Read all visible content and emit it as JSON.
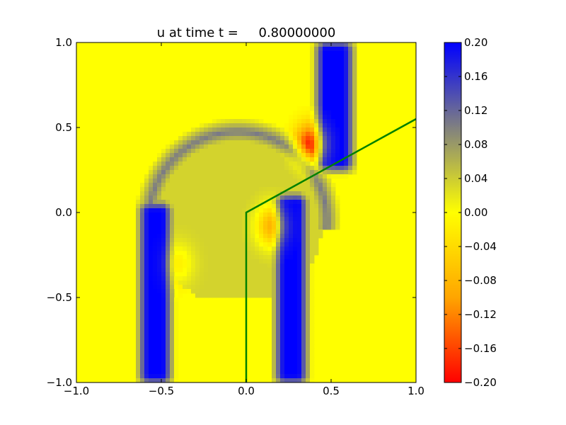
{
  "chart_data": {
    "type": "heatmap",
    "title": "u at time t =     0.80000000",
    "xlabel": "",
    "ylabel": "",
    "xlim": [
      -1.0,
      1.0
    ],
    "ylim": [
      -1.0,
      1.0
    ],
    "x_ticks": [
      "−1.0",
      "−0.5",
      "0.0",
      "0.5",
      "1.0"
    ],
    "y_ticks": [
      "−1.0",
      "−0.5",
      "0.0",
      "0.5",
      "1.0"
    ],
    "colorbar": {
      "range": [
        -0.2,
        0.2
      ],
      "ticks": [
        "0.20",
        "0.16",
        "0.12",
        "0.08",
        "0.04",
        "0.00",
        "−0.04",
        "−0.08",
        "−0.12",
        "−0.16",
        "−0.20"
      ],
      "colors": {
        "min": "#ff0000",
        "mid_low": "#ffa500",
        "zero": "#ffff00",
        "mid_high": "#808080",
        "max": "#0000ff"
      }
    },
    "features": [
      {
        "kind": "band",
        "value": 0.2,
        "x_range": [
          -0.62,
          -0.45
        ],
        "y_range": [
          -1.0,
          0.05
        ]
      },
      {
        "kind": "band",
        "value": 0.2,
        "x_range": [
          0.18,
          0.35
        ],
        "y_range": [
          -1.0,
          0.1
        ]
      },
      {
        "kind": "band",
        "value": 0.2,
        "x_range": [
          0.42,
          0.62
        ],
        "y_range": [
          0.25,
          1.0
        ]
      },
      {
        "kind": "arc",
        "value": 0.15,
        "center": [
          -0.05,
          -0.05
        ],
        "radius": [
          0.5,
          0.55
        ]
      },
      {
        "kind": "blob",
        "value": -0.18,
        "center": [
          0.38,
          0.4
        ]
      },
      {
        "kind": "blob",
        "value": -0.12,
        "center": [
          0.15,
          -0.08
        ]
      },
      {
        "kind": "blob",
        "value": -0.05,
        "center": [
          -0.4,
          -0.3
        ]
      }
    ],
    "line_series": [
      {
        "color": "#008000",
        "x": [
          0.0,
          0.0,
          0.2,
          0.4,
          0.6,
          0.8,
          1.0
        ],
        "y": [
          -1.0,
          0.0,
          0.11,
          0.22,
          0.33,
          0.44,
          0.55
        ]
      }
    ]
  }
}
